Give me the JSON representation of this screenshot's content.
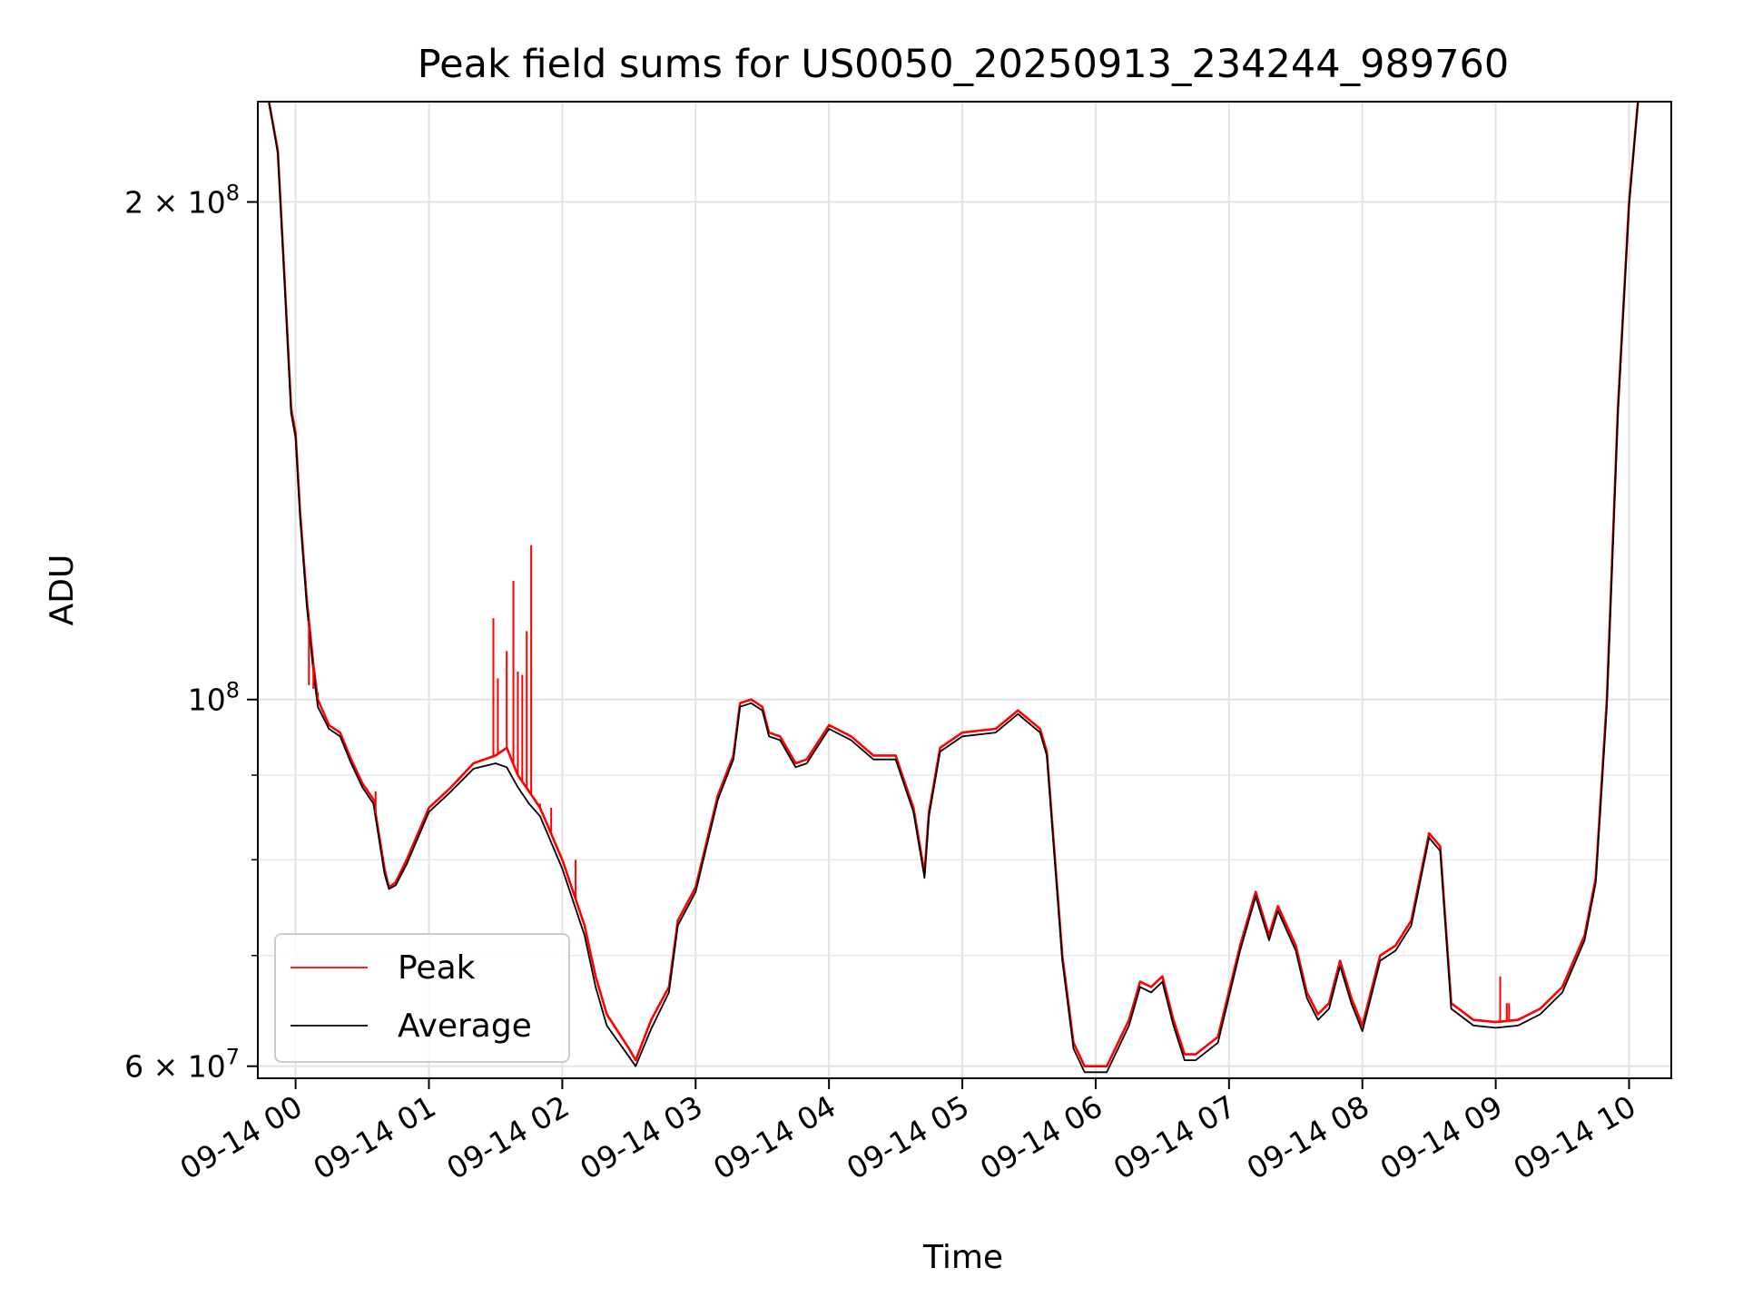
{
  "chart_data": {
    "type": "line",
    "title": "Peak field sums for US0050_20250913_234244_989760",
    "xlabel": "Time",
    "ylabel": "ADU",
    "yscale": "log",
    "xlim": [
      "09-13 23:43",
      "09-14 10:19"
    ],
    "ylim": [
      59000000,
      230000000
    ],
    "grid": true,
    "legend_position": "lower-left",
    "x_ticks": [
      {
        "time": "09-14 00:00",
        "label": "09-14 00"
      },
      {
        "time": "09-14 01:00",
        "label": "09-14 01"
      },
      {
        "time": "09-14 02:00",
        "label": "09-14 02"
      },
      {
        "time": "09-14 03:00",
        "label": "09-14 03"
      },
      {
        "time": "09-14 04:00",
        "label": "09-14 04"
      },
      {
        "time": "09-14 05:00",
        "label": "09-14 05"
      },
      {
        "time": "09-14 06:00",
        "label": "09-14 06"
      },
      {
        "time": "09-14 07:00",
        "label": "09-14 07"
      },
      {
        "time": "09-14 08:00",
        "label": "09-14 08"
      },
      {
        "time": "09-14 09:00",
        "label": "09-14 09"
      },
      {
        "time": "09-14 10:00",
        "label": "09-14 10"
      }
    ],
    "y_major_ticks": [
      {
        "value": 60000000,
        "mantissa": "6",
        "exponent": "7"
      },
      {
        "value": 100000000,
        "mantissa": "",
        "exponent": "8"
      },
      {
        "value": 200000000,
        "mantissa": "2",
        "exponent": "8"
      }
    ],
    "y_minor_ticks": [
      70000000,
      80000000,
      90000000
    ],
    "times_symbol": "×",
    "base": "10",
    "series": [
      {
        "name": "Peak",
        "color": "#ff0000",
        "points": [
          [
            "09-13 23:48",
            230000000
          ],
          [
            "09-13 23:52",
            215000000
          ],
          [
            "09-13 23:55",
            180000000
          ],
          [
            "09-13 23:58",
            150000000
          ],
          [
            "09-14 00:00",
            145000000
          ],
          [
            "09-14 00:02",
            130000000
          ],
          [
            "09-14 00:05",
            115000000
          ],
          [
            "09-14 00:08",
            105000000
          ],
          [
            "09-14 00:10",
            100000000
          ],
          [
            "09-14 00:15",
            96500000
          ],
          [
            "09-14 00:20",
            95500000
          ],
          [
            "09-14 00:25",
            92000000
          ],
          [
            "09-14 00:30",
            89000000
          ],
          [
            "09-14 00:35",
            87000000
          ],
          [
            "09-14 00:40",
            79000000
          ],
          [
            "09-14 00:42",
            77000000
          ],
          [
            "09-14 00:45",
            77500000
          ],
          [
            "09-14 00:50",
            80000000
          ],
          [
            "09-14 01:00",
            86000000
          ],
          [
            "09-14 01:10",
            88500000
          ],
          [
            "09-14 01:20",
            91500000
          ],
          [
            "09-14 01:30",
            92500000
          ],
          [
            "09-14 01:35",
            93500000
          ],
          [
            "09-14 01:40",
            90000000
          ],
          [
            "09-14 01:45",
            88000000
          ],
          [
            "09-14 01:50",
            86000000
          ],
          [
            "09-14 02:00",
            80000000
          ],
          [
            "09-14 02:10",
            73000000
          ],
          [
            "09-14 02:15",
            68000000
          ],
          [
            "09-14 02:20",
            64500000
          ],
          [
            "09-14 02:30",
            61500000
          ],
          [
            "09-14 02:33",
            60500000
          ],
          [
            "09-14 02:40",
            64000000
          ],
          [
            "09-14 02:48",
            67000000
          ],
          [
            "09-14 02:52",
            73500000
          ],
          [
            "09-14 03:00",
            77000000
          ],
          [
            "09-14 03:10",
            87500000
          ],
          [
            "09-14 03:17",
            92500000
          ],
          [
            "09-14 03:20",
            99500000
          ],
          [
            "09-14 03:25",
            100000000
          ],
          [
            "09-14 03:30",
            99000000
          ],
          [
            "09-14 03:33",
            95500000
          ],
          [
            "09-14 03:38",
            95000000
          ],
          [
            "09-14 03:45",
            91500000
          ],
          [
            "09-14 03:50",
            92000000
          ],
          [
            "09-14 04:00",
            96500000
          ],
          [
            "09-14 04:10",
            95000000
          ],
          [
            "09-14 04:20",
            92500000
          ],
          [
            "09-14 04:30",
            92500000
          ],
          [
            "09-14 04:38",
            86000000
          ],
          [
            "09-14 04:43",
            78500000
          ],
          [
            "09-14 04:45",
            85500000
          ],
          [
            "09-14 04:50",
            93500000
          ],
          [
            "09-14 05:00",
            95500000
          ],
          [
            "09-14 05:15",
            96000000
          ],
          [
            "09-14 05:25",
            98500000
          ],
          [
            "09-14 05:35",
            96000000
          ],
          [
            "09-14 05:38",
            93000000
          ],
          [
            "09-14 05:45",
            70000000
          ],
          [
            "09-14 05:50",
            62000000
          ],
          [
            "09-14 05:55",
            60000000
          ],
          [
            "09-14 06:05",
            60000000
          ],
          [
            "09-14 06:15",
            64000000
          ],
          [
            "09-14 06:20",
            67500000
          ],
          [
            "09-14 06:25",
            67000000
          ],
          [
            "09-14 06:30",
            68000000
          ],
          [
            "09-14 06:35",
            64000000
          ],
          [
            "09-14 06:40",
            61000000
          ],
          [
            "09-14 06:45",
            61000000
          ],
          [
            "09-14 06:55",
            62500000
          ],
          [
            "09-14 07:05",
            71000000
          ],
          [
            "09-14 07:12",
            76500000
          ],
          [
            "09-14 07:18",
            72000000
          ],
          [
            "09-14 07:22",
            75000000
          ],
          [
            "09-14 07:30",
            71000000
          ],
          [
            "09-14 07:35",
            66500000
          ],
          [
            "09-14 07:40",
            64500000
          ],
          [
            "09-14 07:45",
            65500000
          ],
          [
            "09-14 07:50",
            69500000
          ],
          [
            "09-14 07:55",
            66000000
          ],
          [
            "09-14 08:00",
            63500000
          ],
          [
            "09-14 08:08",
            70000000
          ],
          [
            "09-14 08:15",
            71000000
          ],
          [
            "09-14 08:22",
            73500000
          ],
          [
            "09-14 08:30",
            83000000
          ],
          [
            "09-14 08:35",
            81500000
          ],
          [
            "09-14 08:40",
            65500000
          ],
          [
            "09-14 08:50",
            64000000
          ],
          [
            "09-14 09:00",
            63800000
          ],
          [
            "09-14 09:10",
            64000000
          ],
          [
            "09-14 09:20",
            65000000
          ],
          [
            "09-14 09:30",
            67000000
          ],
          [
            "09-14 09:40",
            72000000
          ],
          [
            "09-14 09:45",
            78000000
          ],
          [
            "09-14 09:50",
            100000000
          ],
          [
            "09-14 09:55",
            150000000
          ],
          [
            "09-14 10:00",
            200000000
          ],
          [
            "09-14 10:04",
            230000000
          ]
        ]
      },
      {
        "name": "Average",
        "color": "#000000",
        "points": [
          [
            "09-13 23:48",
            230000000
          ],
          [
            "09-13 23:52",
            214000000
          ],
          [
            "09-13 23:55",
            179000000
          ],
          [
            "09-13 23:58",
            149000000
          ],
          [
            "09-14 00:00",
            144000000
          ],
          [
            "09-14 00:02",
            129000000
          ],
          [
            "09-14 00:05",
            114000000
          ],
          [
            "09-14 00:08",
            104000000
          ],
          [
            "09-14 00:10",
            99000000
          ],
          [
            "09-14 00:15",
            96000000
          ],
          [
            "09-14 00:20",
            95000000
          ],
          [
            "09-14 00:25",
            91500000
          ],
          [
            "09-14 00:30",
            88500000
          ],
          [
            "09-14 00:35",
            86500000
          ],
          [
            "09-14 00:40",
            78500000
          ],
          [
            "09-14 00:42",
            76800000
          ],
          [
            "09-14 00:45",
            77200000
          ],
          [
            "09-14 00:50",
            79500000
          ],
          [
            "09-14 01:00",
            85500000
          ],
          [
            "09-14 01:10",
            88000000
          ],
          [
            "09-14 01:20",
            90800000
          ],
          [
            "09-14 01:30",
            91500000
          ],
          [
            "09-14 01:35",
            91000000
          ],
          [
            "09-14 01:40",
            88500000
          ],
          [
            "09-14 01:45",
            86500000
          ],
          [
            "09-14 01:50",
            85000000
          ],
          [
            "09-14 02:00",
            79000000
          ],
          [
            "09-14 02:10",
            72000000
          ],
          [
            "09-14 02:15",
            67000000
          ],
          [
            "09-14 02:20",
            63500000
          ],
          [
            "09-14 02:30",
            60800000
          ],
          [
            "09-14 02:33",
            60000000
          ],
          [
            "09-14 02:40",
            63200000
          ],
          [
            "09-14 02:48",
            66500000
          ],
          [
            "09-14 02:52",
            73000000
          ],
          [
            "09-14 03:00",
            76500000
          ],
          [
            "09-14 03:10",
            87000000
          ],
          [
            "09-14 03:17",
            92000000
          ],
          [
            "09-14 03:20",
            99000000
          ],
          [
            "09-14 03:25",
            99500000
          ],
          [
            "09-14 03:30",
            98500000
          ],
          [
            "09-14 03:33",
            95000000
          ],
          [
            "09-14 03:38",
            94500000
          ],
          [
            "09-14 03:45",
            91000000
          ],
          [
            "09-14 03:50",
            91500000
          ],
          [
            "09-14 04:00",
            96000000
          ],
          [
            "09-14 04:10",
            94500000
          ],
          [
            "09-14 04:20",
            92000000
          ],
          [
            "09-14 04:30",
            92000000
          ],
          [
            "09-14 04:38",
            85500000
          ],
          [
            "09-14 04:43",
            78000000
          ],
          [
            "09-14 04:45",
            85000000
          ],
          [
            "09-14 04:50",
            93000000
          ],
          [
            "09-14 05:00",
            95000000
          ],
          [
            "09-14 05:15",
            95500000
          ],
          [
            "09-14 05:25",
            98000000
          ],
          [
            "09-14 05:35",
            95500000
          ],
          [
            "09-14 05:38",
            92500000
          ],
          [
            "09-14 05:45",
            69500000
          ],
          [
            "09-14 05:50",
            61500000
          ],
          [
            "09-14 05:55",
            59500000
          ],
          [
            "09-14 06:05",
            59500000
          ],
          [
            "09-14 06:15",
            63500000
          ],
          [
            "09-14 06:20",
            67000000
          ],
          [
            "09-14 06:25",
            66500000
          ],
          [
            "09-14 06:30",
            67500000
          ],
          [
            "09-14 06:35",
            63500000
          ],
          [
            "09-14 06:40",
            60500000
          ],
          [
            "09-14 06:45",
            60500000
          ],
          [
            "09-14 06:55",
            62000000
          ],
          [
            "09-14 07:05",
            70500000
          ],
          [
            "09-14 07:12",
            76000000
          ],
          [
            "09-14 07:18",
            71500000
          ],
          [
            "09-14 07:22",
            74500000
          ],
          [
            "09-14 07:30",
            70500000
          ],
          [
            "09-14 07:35",
            66000000
          ],
          [
            "09-14 07:40",
            64000000
          ],
          [
            "09-14 07:45",
            65000000
          ],
          [
            "09-14 07:50",
            69000000
          ],
          [
            "09-14 07:55",
            65500000
          ],
          [
            "09-14 08:00",
            63000000
          ],
          [
            "09-14 08:08",
            69500000
          ],
          [
            "09-14 08:15",
            70500000
          ],
          [
            "09-14 08:22",
            73000000
          ],
          [
            "09-14 08:30",
            82500000
          ],
          [
            "09-14 08:35",
            81000000
          ],
          [
            "09-14 08:40",
            65000000
          ],
          [
            "09-14 08:50",
            63500000
          ],
          [
            "09-14 09:00",
            63300000
          ],
          [
            "09-14 09:10",
            63500000
          ],
          [
            "09-14 09:20",
            64500000
          ],
          [
            "09-14 09:30",
            66500000
          ],
          [
            "09-14 09:40",
            71500000
          ],
          [
            "09-14 09:45",
            77500000
          ],
          [
            "09-14 09:50",
            99000000
          ],
          [
            "09-14 09:55",
            149000000
          ],
          [
            "09-14 10:00",
            199000000
          ],
          [
            "09-14 10:04",
            230000000
          ]
        ]
      }
    ],
    "peak_spikes": [
      [
        "09-14 00:06",
        102000000
      ],
      [
        "09-14 00:08",
        101500000
      ],
      [
        "09-14 00:10",
        101000000
      ],
      [
        "09-14 00:36",
        88000000
      ],
      [
        "09-14 01:29",
        112000000
      ],
      [
        "09-14 01:31",
        103000000
      ],
      [
        "09-14 01:35",
        107000000
      ],
      [
        "09-14 01:38",
        118000000
      ],
      [
        "09-14 01:40",
        104000000
      ],
      [
        "09-14 01:42",
        103500000
      ],
      [
        "09-14 01:44",
        110000000
      ],
      [
        "09-14 01:46",
        124000000
      ],
      [
        "09-14 01:50",
        86500000
      ],
      [
        "09-14 01:55",
        86000000
      ],
      [
        "09-14 02:06",
        80000000
      ],
      [
        "09-14 02:22",
        64000000
      ],
      [
        "09-14 09:02",
        68000000
      ],
      [
        "09-14 09:05",
        65500000
      ],
      [
        "09-14 09:06",
        65500000
      ]
    ]
  }
}
